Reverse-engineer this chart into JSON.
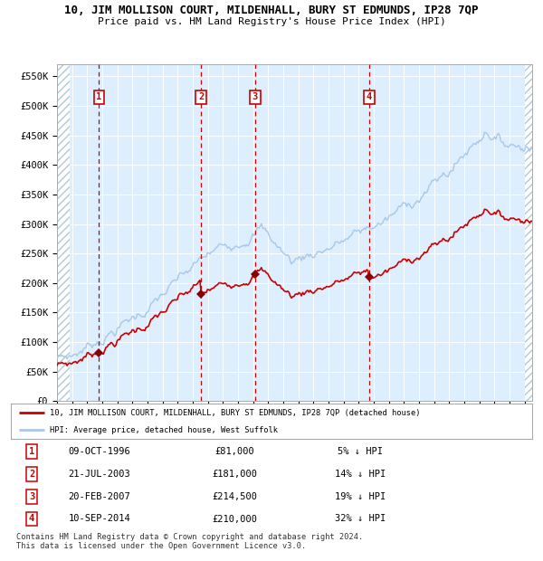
{
  "title": "10, JIM MOLLISON COURT, MILDENHALL, BURY ST EDMUNDS, IP28 7QP",
  "subtitle": "Price paid vs. HM Land Registry's House Price Index (HPI)",
  "hpi_color": "#a8c8e8",
  "price_color": "#cc0000",
  "bg_color": "#ddeeff",
  "bg_hatch_color": "#c8d8e8",
  "ylim": [
    0,
    570000
  ],
  "yticks": [
    0,
    50000,
    100000,
    150000,
    200000,
    250000,
    300000,
    350000,
    400000,
    450000,
    500000,
    550000
  ],
  "ytick_labels": [
    "£0",
    "£50K",
    "£100K",
    "£150K",
    "£200K",
    "£250K",
    "£300K",
    "£350K",
    "£400K",
    "£450K",
    "£500K",
    "£550K"
  ],
  "sale_dates": [
    1996.78,
    2003.55,
    2007.13,
    2014.69
  ],
  "sale_prices": [
    81000,
    181000,
    214500,
    210000
  ],
  "sale_labels": [
    "1",
    "2",
    "3",
    "4"
  ],
  "legend_price_label": "10, JIM MOLLISON COURT, MILDENHALL, BURY ST EDMUNDS, IP28 7QP (detached house)",
  "legend_hpi_label": "HPI: Average price, detached house, West Suffolk",
  "table_rows": [
    [
      "1",
      "09-OCT-1996",
      "£81,000",
      "5% ↓ HPI"
    ],
    [
      "2",
      "21-JUL-2003",
      "£181,000",
      "14% ↓ HPI"
    ],
    [
      "3",
      "20-FEB-2007",
      "£214,500",
      "19% ↓ HPI"
    ],
    [
      "4",
      "10-SEP-2014",
      "£210,000",
      "32% ↓ HPI"
    ]
  ],
  "footnote": "Contains HM Land Registry data © Crown copyright and database right 2024.\nThis data is licensed under the Open Government Licence v3.0.",
  "xmin": 1994.0,
  "xmax": 2025.5
}
